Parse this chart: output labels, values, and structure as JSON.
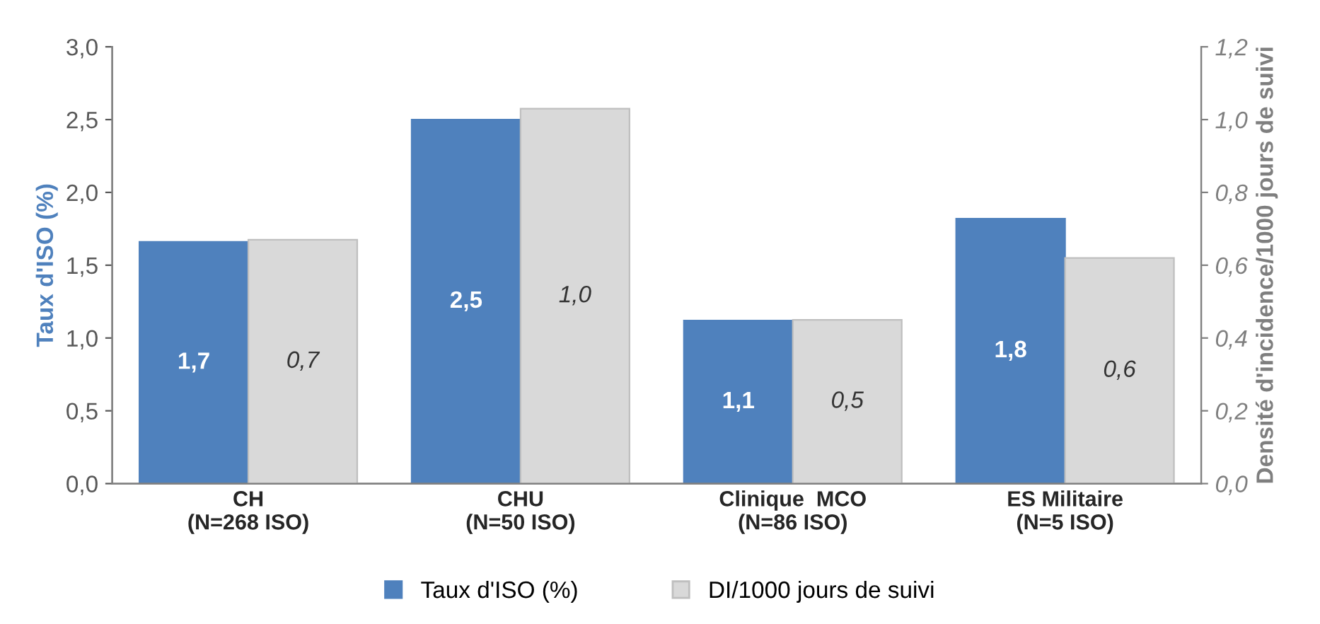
{
  "chart_data": {
    "type": "bar",
    "ylabel": "Taux d'ISO (%)",
    "y2label": "Densité d'incidence/1000 jours de suivi",
    "categories": [
      "CH\n(N=268 ISO)",
      "CHU\n(N=50 ISO)",
      "Clinique  MCO\n(N=86 ISO)",
      "ES Militaire\n(N=5 ISO)"
    ],
    "series": [
      {
        "name": "Taux d'ISO (%)",
        "color": "#4f81bd",
        "values": [
          1.66,
          2.5,
          1.12,
          1.82
        ],
        "value_labels": [
          "1,7",
          "2,5",
          "1,1",
          "1,8"
        ]
      },
      {
        "name": "DI/1000 jours de suivi",
        "color": "#d9d9d9",
        "axis": "y2",
        "values": [
          0.67,
          1.03,
          0.45,
          0.62
        ],
        "value_labels": [
          "0,7",
          "1,0",
          "0,5",
          "0,6"
        ]
      }
    ],
    "ylim": [
      0,
      3.0
    ],
    "yticks": [
      {
        "value": 0,
        "label": "0,0"
      },
      {
        "value": 0.5,
        "label": "0,5"
      },
      {
        "value": 1.0,
        "label": "1,0"
      },
      {
        "value": 1.5,
        "label": "1,5"
      },
      {
        "value": 2.0,
        "label": "2,0"
      },
      {
        "value": 2.5,
        "label": "2,5"
      },
      {
        "value": 3.0,
        "label": "3,0"
      }
    ],
    "y2lim": [
      0,
      1.2
    ],
    "y2ticks": [
      {
        "value": 0,
        "label": "0,0"
      },
      {
        "value": 0.2,
        "label": "0,2"
      },
      {
        "value": 0.4,
        "label": "0,4"
      },
      {
        "value": 0.6,
        "label": "0,6"
      },
      {
        "value": 0.8,
        "label": "0,8"
      },
      {
        "value": 1.0,
        "label": "1,0"
      },
      {
        "value": 1.2,
        "label": "1,2"
      }
    ],
    "grid": false,
    "legend": "bottom"
  }
}
